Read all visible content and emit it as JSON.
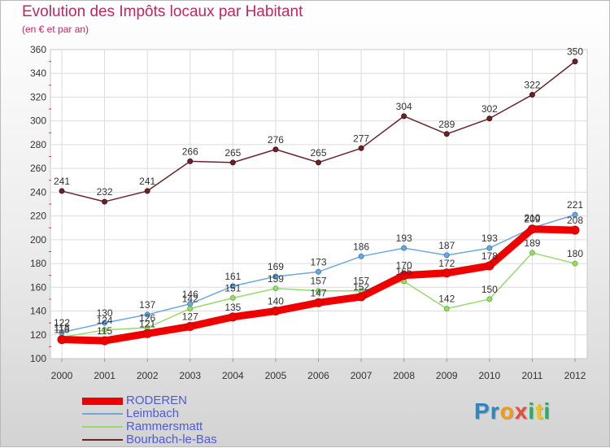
{
  "header": {
    "title": "Evolution des Impôts locaux par Habitant",
    "subtitle": "(en € et par an)"
  },
  "logo": {
    "letters": [
      "P",
      "r",
      "o",
      "x",
      "i",
      "t",
      "i"
    ],
    "colors": [
      "#2e86c1",
      "#2e86c1",
      "#f39c12",
      "#e74c3c",
      "#27ae60",
      "#f1c40f",
      "#27ae60"
    ]
  },
  "chart_data": {
    "type": "line",
    "title": "Evolution des Impôts locaux par Habitant",
    "subtitle": "(en € et par an)",
    "xlabel": "",
    "ylabel": "",
    "categories": [
      "2000",
      "2001",
      "2002",
      "2003",
      "2004",
      "2005",
      "2006",
      "2007",
      "2008",
      "2009",
      "2010",
      "2011",
      "2012"
    ],
    "ylim": [
      100,
      360
    ],
    "yticks": [
      100,
      120,
      140,
      160,
      180,
      200,
      220,
      240,
      260,
      280,
      300,
      320,
      340,
      360
    ],
    "legend_position": "bottom-left",
    "series": [
      {
        "name": "RODEREN",
        "color": "#ee0000",
        "values": [
          116,
          115,
          121,
          127,
          135,
          140,
          147,
          152,
          170,
          172,
          178,
          209,
          208
        ]
      },
      {
        "name": "Leimbach",
        "color": "#6fa8dc",
        "values": [
          122,
          130,
          137,
          146,
          161,
          169,
          173,
          186,
          193,
          187,
          193,
          210,
          221
        ]
      },
      {
        "name": "Rammersmatt",
        "color": "#98d96b",
        "values": [
          118,
          124,
          126,
          142,
          151,
          159,
          157,
          157,
          165,
          142,
          150,
          189,
          180
        ]
      },
      {
        "name": "Bourbach-le-Bas",
        "color": "#6b2329",
        "values": [
          241,
          232,
          241,
          266,
          265,
          276,
          265,
          277,
          304,
          289,
          302,
          322,
          350
        ]
      }
    ],
    "data_labels": [
      [
        "116",
        "115",
        "121",
        "127",
        "135",
        "140",
        "147",
        "152",
        "170",
        "172",
        "178",
        "209",
        "208"
      ],
      [
        "122",
        "130",
        "137",
        "146",
        "161",
        "169",
        "173",
        "186",
        "193",
        "187",
        "193",
        "210",
        "221"
      ],
      [
        "118",
        "124",
        "126",
        "142",
        "151",
        "159",
        "157",
        "157",
        "165",
        "142",
        "150",
        "189",
        "180"
      ],
      [
        "241",
        "232",
        "241",
        "266",
        "265",
        "276",
        "265",
        "277",
        "304",
        "289",
        "302",
        "322",
        "350"
      ]
    ]
  }
}
